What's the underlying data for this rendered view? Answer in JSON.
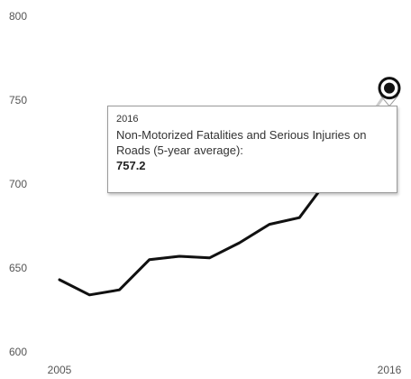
{
  "chart_data": {
    "type": "line",
    "x": [
      2005,
      2006,
      2007,
      2008,
      2009,
      2010,
      2011,
      2012,
      2013,
      2014,
      2015,
      2016
    ],
    "series": [
      {
        "values": [
          643,
          634,
          637,
          655,
          657,
          656,
          665,
          676,
          680,
          704,
          731,
          757.2
        ]
      }
    ],
    "ylim": [
      600,
      800
    ],
    "yticks": [
      "600",
      "650",
      "700",
      "750",
      "800"
    ],
    "xticks": [
      {
        "x": 2005,
        "label": "2005"
      },
      {
        "x": 2016,
        "label": "2016"
      }
    ],
    "grid": false,
    "line_color": "#111111",
    "faded_line_color": "#cccccc",
    "highlight": {
      "x": 2016,
      "value": 757.2
    }
  },
  "tooltip": {
    "year": "2016",
    "label": "Non-Motorized Fatalities and Serious Injuries on Roads (5-year average):",
    "value": "757.2"
  }
}
